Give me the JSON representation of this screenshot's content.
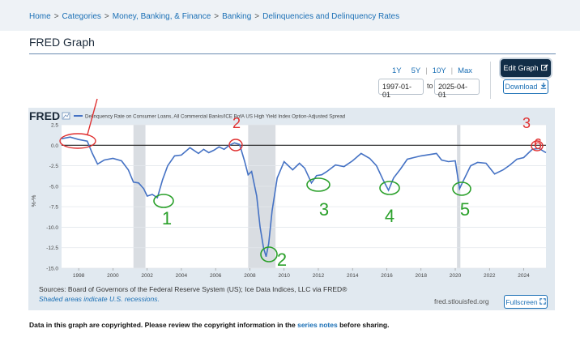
{
  "breadcrumb": {
    "items": [
      "Home",
      "Categories",
      "Money, Banking, & Finance",
      "Banking",
      "Delinquencies and Delinquency Rates"
    ],
    "separator": ">"
  },
  "page": {
    "title": "FRED Graph"
  },
  "controls": {
    "range_links": [
      "1Y",
      "5Y",
      "10Y",
      "Max"
    ],
    "start_date": "1997-01-01",
    "end_date": "2025-04-01",
    "to_label": "to",
    "edit_label": "Edit Graph",
    "download_label": "Download",
    "fullscreen_label": "Fullscreen"
  },
  "graph": {
    "logo": "FRED",
    "series_text": "Delinquency Rate on Consumer Loans, All Commercial Banks/ICE BofA US High Yield Index Option-Adjusted Spread",
    "sources": "Sources: Board of Governors of the Federal Reserve System (US); Ice Data Indices, LLC via FRED®",
    "shaded_note": "Shaded areas indicate U.S. recessions.",
    "fred_url": "fred.stlouisfed.org",
    "line_color": "#4572c4",
    "annotations_red": [
      "1",
      "2",
      "3",
      "6"
    ],
    "annotations_green": [
      "1",
      "2",
      "3",
      "4",
      "5"
    ]
  },
  "copyright": {
    "pre": "Data in this graph are copyrighted. Please review the copyright information in the ",
    "link": "series notes",
    "post": " before sharing."
  },
  "chart_data": {
    "type": "line",
    "ylabel": "%-%",
    "ylim": [
      -15,
      2.5
    ],
    "yticks": [
      2.5,
      0.0,
      -2.5,
      -5.0,
      -7.5,
      -10.0,
      -12.5,
      -15.0
    ],
    "xlim": [
      1997,
      2025.3
    ],
    "xticks": [
      "1998",
      "2000",
      "2002",
      "2004",
      "2006",
      "2008",
      "2010",
      "2012",
      "2014",
      "2016",
      "2018",
      "2020",
      "2022",
      "2024"
    ],
    "recessions": [
      [
        2001.2,
        2001.9
      ],
      [
        2007.9,
        2009.5
      ],
      [
        2020.1,
        2020.3
      ]
    ],
    "reference_line": 0,
    "x": [
      1997.0,
      1997.5,
      1998.0,
      1998.5,
      1998.8,
      1999.1,
      1999.5,
      2000.0,
      2000.5,
      2000.9,
      2001.2,
      2001.5,
      2001.8,
      2002.0,
      2002.3,
      2002.6,
      2002.9,
      2003.2,
      2003.6,
      2004.0,
      2004.5,
      2005.0,
      2005.3,
      2005.6,
      2005.9,
      2006.2,
      2006.5,
      2006.8,
      2007.1,
      2007.4,
      2007.7,
      2007.9,
      2008.1,
      2008.4,
      2008.6,
      2008.8,
      2008.95,
      2009.1,
      2009.3,
      2009.6,
      2010.0,
      2010.5,
      2010.9,
      2011.2,
      2011.6,
      2011.9,
      2012.2,
      2012.5,
      2013.0,
      2013.5,
      2014.0,
      2014.5,
      2015.0,
      2015.4,
      2015.8,
      2016.1,
      2016.4,
      2016.8,
      2017.2,
      2018.0,
      2018.9,
      2019.2,
      2019.6,
      2020.0,
      2020.25,
      2020.5,
      2020.9,
      2021.3,
      2021.8,
      2022.3,
      2022.8,
      2023.2,
      2023.6,
      2024.0,
      2024.5,
      2024.9,
      2025.3
    ],
    "y": [
      0.8,
      1.0,
      0.7,
      0.5,
      -1.0,
      -2.3,
      -1.8,
      -1.6,
      -1.9,
      -3.0,
      -4.5,
      -4.6,
      -5.3,
      -6.2,
      -6.0,
      -6.4,
      -4.2,
      -2.5,
      -1.3,
      -1.2,
      -0.3,
      -1.0,
      -0.5,
      -0.9,
      -0.6,
      -0.2,
      -0.5,
      0.0,
      0.3,
      0.1,
      -2.0,
      -3.6,
      -3.2,
      -6.2,
      -10.0,
      -12.5,
      -13.6,
      -12.0,
      -8.0,
      -4.0,
      -2.0,
      -3.0,
      -2.2,
      -2.8,
      -4.6,
      -3.7,
      -3.6,
      -3.2,
      -2.4,
      -2.6,
      -1.9,
      -1.0,
      -1.6,
      -2.5,
      -4.3,
      -5.5,
      -4.0,
      -2.9,
      -1.7,
      -1.3,
      -1.0,
      -1.8,
      -2.0,
      -1.9,
      -5.3,
      -4.2,
      -2.5,
      -2.1,
      -2.2,
      -3.5,
      -3.0,
      -2.4,
      -1.7,
      -1.5,
      -0.5,
      -0.4,
      -0.9
    ]
  }
}
